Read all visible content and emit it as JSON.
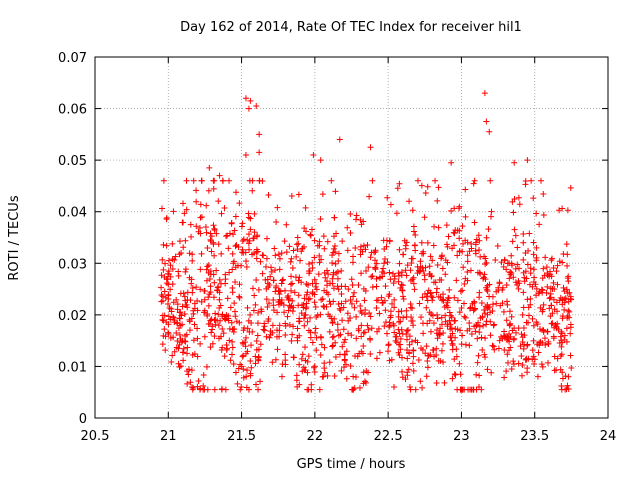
{
  "chart_data": {
    "type": "scatter",
    "title": "Day 162 of 2014, Rate Of TEC Index for receiver hil1",
    "xlabel": "GPS time / hours",
    "ylabel": "ROTI / TECUs",
    "xlim": [
      20.5,
      24
    ],
    "ylim": [
      0,
      0.07
    ],
    "xticks": [
      "20.5",
      "21",
      "21.5",
      "22",
      "22.5",
      "23",
      "23.5",
      "24"
    ],
    "yticks": [
      "0",
      "0.01",
      "0.02",
      "0.03",
      "0.04",
      "0.05",
      "0.06",
      "0.07"
    ],
    "grid": true,
    "marker": "+",
    "color": "#ff0000",
    "series": [
      {
        "name": "ROTI",
        "description": "Dense cloud of ~1700 samples between 20.95 and 23.75 h; bulk between 0.006 and 0.035 TECUs, peaks up to ~0.063",
        "x_range": [
          20.95,
          23.75
        ],
        "highlights": [
          {
            "x": 21.53,
            "y": 0.062
          },
          {
            "x": 21.56,
            "y": 0.0615
          },
          {
            "x": 21.6,
            "y": 0.0605
          },
          {
            "x": 21.55,
            "y": 0.06
          },
          {
            "x": 21.62,
            "y": 0.055
          },
          {
            "x": 21.53,
            "y": 0.051
          },
          {
            "x": 21.62,
            "y": 0.0515
          },
          {
            "x": 23.16,
            "y": 0.063
          },
          {
            "x": 23.17,
            "y": 0.0575
          },
          {
            "x": 23.19,
            "y": 0.0555
          },
          {
            "x": 23.36,
            "y": 0.0495
          },
          {
            "x": 23.45,
            "y": 0.05
          },
          {
            "x": 22.17,
            "y": 0.054
          },
          {
            "x": 22.38,
            "y": 0.0525
          },
          {
            "x": 21.99,
            "y": 0.051
          },
          {
            "x": 22.04,
            "y": 0.05
          },
          {
            "x": 22.93,
            "y": 0.0495
          },
          {
            "x": 22.82,
            "y": 0.046
          },
          {
            "x": 21.28,
            "y": 0.0485
          },
          {
            "x": 21.35,
            "y": 0.047
          },
          {
            "x": 20.97,
            "y": 0.046
          },
          {
            "x": 23.12,
            "y": 0.006
          },
          {
            "x": 22.54,
            "y": 0.006
          },
          {
            "x": 23.73,
            "y": 0.008
          }
        ]
      }
    ]
  }
}
